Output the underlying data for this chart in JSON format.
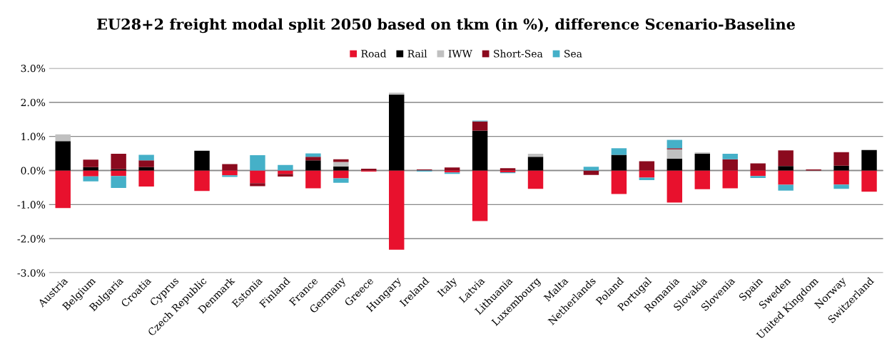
{
  "chart_data": {
    "type": "bar",
    "stacked": true,
    "title": "EU28+2 freight modal split 2050 based on tkm (in %), difference Scenario-Baseline",
    "categories": [
      "Austria",
      "Belgium",
      "Bulgaria",
      "Croatia",
      "Cyprus",
      "Czech Republic",
      "Denmark",
      "Estonia",
      "Finland",
      "France",
      "Germany",
      "Greece",
      "Hungary",
      "Ireland",
      "Italy",
      "Latvia",
      "Lithuania",
      "Luxembourg",
      "Malta",
      "Netherlands",
      "Poland",
      "Portugal",
      "Romania",
      "Slovakia",
      "Slovenia",
      "Spain",
      "Sweden",
      "United Kingdom",
      "Norway",
      "Switzerland"
    ],
    "series": [
      {
        "name": "Road",
        "color": "#e8112d",
        "values": [
          -1.1,
          -0.17,
          -0.16,
          -0.47,
          0,
          -0.6,
          -0.14,
          -0.37,
          -0.1,
          -0.52,
          -0.23,
          -0.03,
          -2.32,
          0,
          -0.06,
          -1.48,
          -0.05,
          -0.54,
          0,
          0,
          -0.69,
          -0.21,
          -0.94,
          -0.55,
          -0.52,
          -0.16,
          -0.42,
          0,
          -0.41,
          -0.62
        ]
      },
      {
        "name": "Rail",
        "color": "#000000",
        "values": [
          0.86,
          0.1,
          0.04,
          0.1,
          0,
          0.58,
          0,
          0,
          0,
          0.3,
          0.12,
          0,
          2.23,
          0,
          0,
          1.17,
          0,
          0.4,
          0,
          0,
          0.46,
          0,
          0.35,
          0.49,
          0,
          0,
          0.13,
          0,
          0.14,
          0.6
        ]
      },
      {
        "name": "IWW",
        "color": "#c0c0c0",
        "values": [
          0.2,
          0,
          0,
          0,
          0,
          0,
          0,
          0,
          0,
          0,
          0.13,
          0,
          0.05,
          0,
          0,
          0,
          0,
          0.09,
          0,
          0,
          0,
          0,
          0.27,
          0.04,
          0,
          0,
          0,
          0,
          0,
          0
        ]
      },
      {
        "name": "Short-Sea",
        "color": "#8b0a1e",
        "values": [
          0,
          0.22,
          0.45,
          0.2,
          0,
          0,
          0.19,
          -0.09,
          -0.08,
          0.1,
          0.08,
          0.05,
          0,
          0.03,
          0.09,
          0.27,
          0.07,
          0,
          0,
          -0.13,
          0,
          0.27,
          0.03,
          0,
          0.33,
          0.21,
          0.46,
          0.03,
          0.4,
          0
        ]
      },
      {
        "name": "Sea",
        "color": "#45b0c8",
        "values": [
          0,
          -0.15,
          -0.35,
          0.16,
          0,
          0,
          -0.05,
          0.45,
          0.16,
          0.1,
          -0.13,
          0,
          0,
          -0.03,
          -0.04,
          0.02,
          -0.03,
          0,
          0,
          0.11,
          0.19,
          -0.07,
          0.25,
          0,
          0.16,
          -0.06,
          -0.17,
          0,
          -0.13,
          0
        ]
      }
    ],
    "ylim": [
      -3,
      3
    ],
    "yticks": [
      {
        "value": -3,
        "label": "-3.0%"
      },
      {
        "value": -2,
        "label": "-2.0%"
      },
      {
        "value": -1,
        "label": "-1.0%"
      },
      {
        "value": 0,
        "label": "0.0%"
      },
      {
        "value": 1,
        "label": "1.0%"
      },
      {
        "value": 2,
        "label": "2.0%"
      },
      {
        "value": 3,
        "label": "3.0%"
      }
    ],
    "grid": "y",
    "legend": "top"
  }
}
